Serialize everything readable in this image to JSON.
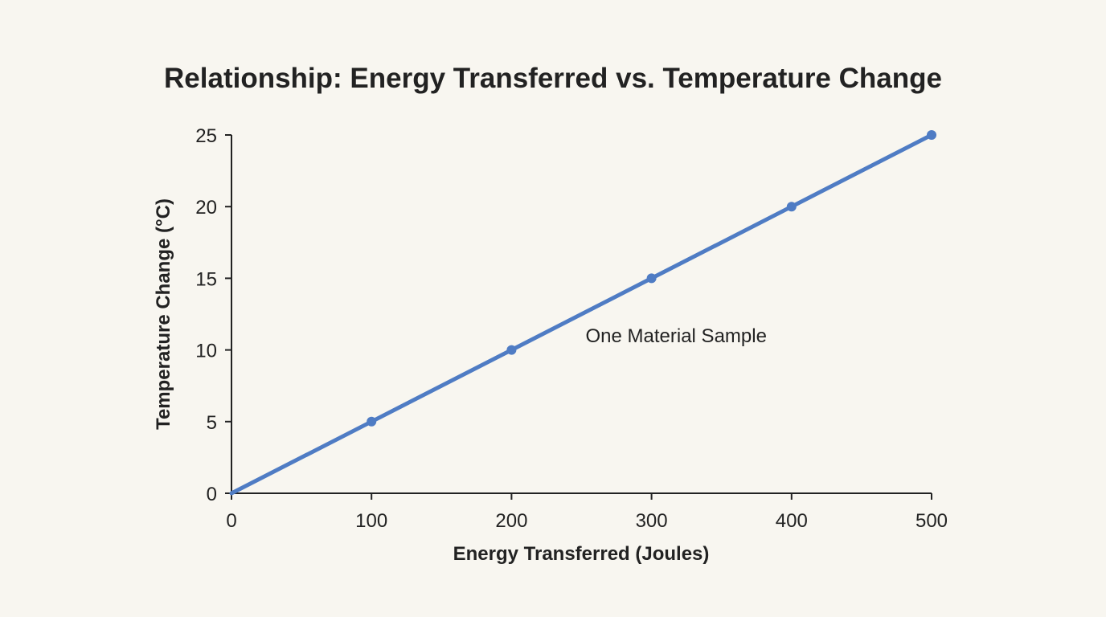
{
  "chart_data": {
    "type": "line",
    "title": "Relationship: Energy Transferred vs. Temperature Change",
    "xlabel": "Energy Transferred (Joules)",
    "ylabel": "Temperature Change (°C)",
    "xlim": [
      0,
      500
    ],
    "ylim": [
      0,
      25
    ],
    "xticks": [
      0,
      100,
      200,
      300,
      400,
      500
    ],
    "yticks": [
      0,
      5,
      10,
      15,
      20,
      25
    ],
    "grid": false,
    "series": [
      {
        "x": [
          0,
          100,
          200,
          300,
          400,
          500
        ],
        "y": [
          0,
          5,
          10,
          15,
          20,
          25
        ],
        "color": "#4f7cc4",
        "markers_on": [
          100,
          200,
          300,
          400,
          500
        ]
      }
    ],
    "annotations": [
      {
        "text": "One Material Sample",
        "x": 250,
        "y": 11
      }
    ]
  }
}
